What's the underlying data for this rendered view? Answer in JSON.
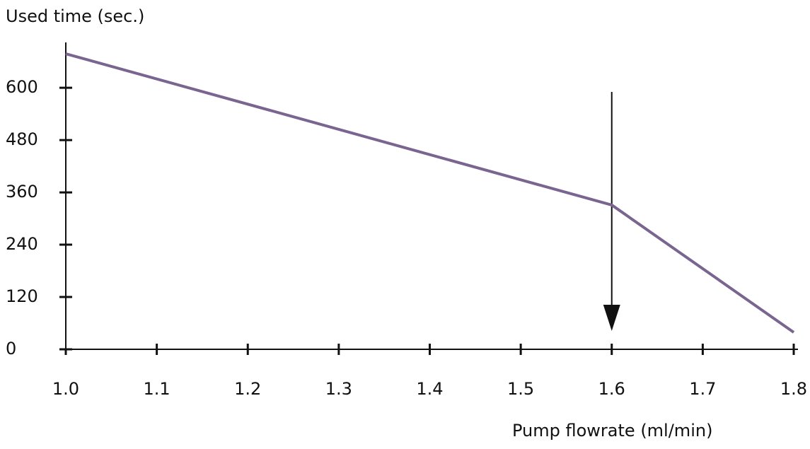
{
  "chart_data": {
    "type": "line",
    "y_label": "Used time (sec.)",
    "x_label": "Pump flowrate  (ml/min)",
    "x": [
      1.0,
      1.6,
      1.8
    ],
    "series": [
      {
        "name": "Used time",
        "color": "#7a6490",
        "values": [
          678,
          331,
          39
        ]
      }
    ],
    "xlim": [
      1.0,
      1.8
    ],
    "xticks": [
      {
        "value": 1.0,
        "label": "1.0"
      },
      1.1,
      1.2,
      1.3,
      1.4,
      1.5,
      1.6,
      1.7,
      1.8
    ],
    "ylim": [
      0,
      704
    ],
    "yticks": [
      0,
      120,
      240,
      360,
      480,
      600
    ],
    "annotations": [
      {
        "type": "arrow",
        "x": 1.6
      }
    ]
  }
}
